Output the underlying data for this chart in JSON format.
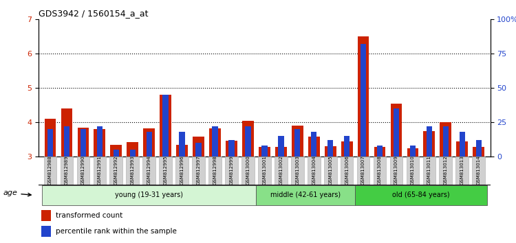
{
  "title": "GDS3942 / 1560154_a_at",
  "samples": [
    "GSM812988",
    "GSM812989",
    "GSM812990",
    "GSM812991",
    "GSM812992",
    "GSM812993",
    "GSM812994",
    "GSM812995",
    "GSM812996",
    "GSM812997",
    "GSM812998",
    "GSM812999",
    "GSM813000",
    "GSM813001",
    "GSM813002",
    "GSM813003",
    "GSM813004",
    "GSM813005",
    "GSM813006",
    "GSM813007",
    "GSM813008",
    "GSM813009",
    "GSM813010",
    "GSM813011",
    "GSM813012",
    "GSM813013",
    "GSM813014"
  ],
  "red_values": [
    4.1,
    4.4,
    3.85,
    3.8,
    3.35,
    3.42,
    3.82,
    4.8,
    3.35,
    3.58,
    3.82,
    3.47,
    4.05,
    3.28,
    3.28,
    3.9,
    3.58,
    3.3,
    3.45,
    6.5,
    3.28,
    4.55,
    3.25,
    3.75,
    4.0,
    3.45,
    3.28
  ],
  "blue_pct": [
    20,
    22,
    20,
    22,
    5,
    5,
    18,
    45,
    18,
    10,
    22,
    12,
    22,
    8,
    15,
    20,
    18,
    12,
    15,
    82,
    8,
    35,
    8,
    22,
    22,
    18,
    12
  ],
  "groups": [
    {
      "label": "young (19-31 years)",
      "start": 0,
      "end": 13,
      "color": "#d4f5d4"
    },
    {
      "label": "middle (42-61 years)",
      "start": 13,
      "end": 19,
      "color": "#88e088"
    },
    {
      "label": "old (65-84 years)",
      "start": 19,
      "end": 27,
      "color": "#44cc44"
    }
  ],
  "ylim_left": [
    3,
    7
  ],
  "ylim_right": [
    0,
    100
  ],
  "yticks_left": [
    3,
    4,
    5,
    6,
    7
  ],
  "yticks_right": [
    0,
    25,
    50,
    75,
    100
  ],
  "ytick_labels_right": [
    "0",
    "25",
    "50",
    "75",
    "100%"
  ],
  "red_color": "#cc2200",
  "blue_color": "#2244cc",
  "bar_width": 0.7,
  "blue_bar_width": 0.35,
  "background_color": "#ffffff",
  "tick_label_bg": "#d0d0d0",
  "age_label": "age",
  "legend_items": [
    {
      "label": "transformed count",
      "color": "#cc2200"
    },
    {
      "label": "percentile rank within the sample",
      "color": "#2244cc"
    }
  ]
}
